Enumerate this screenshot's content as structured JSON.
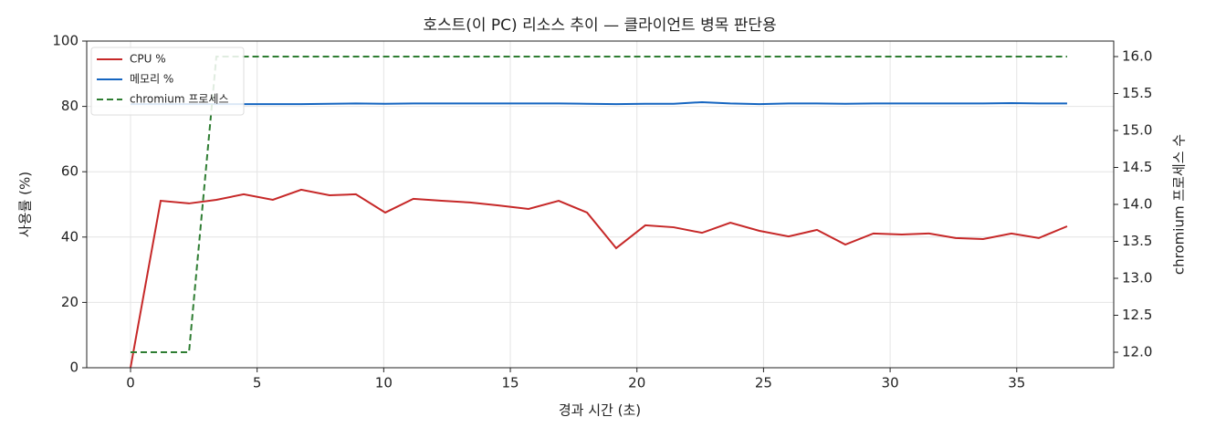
{
  "chart_data": {
    "type": "line",
    "title": "호스트(이 PC) 리소스 추이 — 클라이언트 병목 판단용",
    "x_label": "경과 시간 (초)",
    "y_label": "사용률 (%)",
    "y2_label": "chromium 프로세스 수",
    "x": [
      0,
      1.19,
      2.31,
      3.39,
      4.47,
      5.62,
      6.74,
      7.86,
      8.9,
      10.06,
      11.17,
      12.29,
      13.41,
      14.53,
      15.72,
      16.91,
      18.03,
      19.18,
      20.33,
      21.45,
      22.57,
      23.69,
      24.84,
      25.99,
      27.11,
      28.23,
      29.34,
      30.46,
      31.54,
      32.59,
      33.67,
      34.79,
      35.87,
      36.99
    ],
    "series": [
      {
        "name": "CPU %",
        "color": "#c62828",
        "values": [
          0,
          51.1,
          50.3,
          51.4,
          53.1,
          51.4,
          54.5,
          52.8,
          53.1,
          47.5,
          51.7,
          51.1,
          50.6,
          49.7,
          48.6,
          51.1,
          47.5,
          36.6,
          43.6,
          43.0,
          41.3,
          44.4,
          41.9,
          40.2,
          42.2,
          37.7,
          41.1,
          40.8,
          41.1,
          39.7,
          39.4,
          41.1,
          39.7,
          43.3
        ]
      },
      {
        "name": "메모리 %",
        "color": "#1565c0",
        "values": [
          80.7,
          80.7,
          80.7,
          80.7,
          80.7,
          80.7,
          80.7,
          80.8,
          80.9,
          80.8,
          80.9,
          80.9,
          80.9,
          80.9,
          80.9,
          80.9,
          80.8,
          80.7,
          80.8,
          80.8,
          81.3,
          80.9,
          80.7,
          80.9,
          80.9,
          80.8,
          80.9,
          80.9,
          80.9,
          80.9,
          80.9,
          81.0,
          80.9,
          80.9
        ]
      },
      {
        "name": "chromium 프로세스",
        "color": "#2e7d32",
        "axis": "y2",
        "linestyle": "dashed",
        "values": [
          12,
          12,
          12,
          16,
          16,
          16,
          16,
          16,
          16,
          16,
          16,
          16,
          16,
          16,
          16,
          16,
          16,
          16,
          16,
          16,
          16,
          16,
          16,
          16,
          16,
          16,
          16,
          16,
          16,
          16,
          16,
          16,
          16,
          16
        ]
      }
    ],
    "xlim": [
      -1.73,
      38.83
    ],
    "xticks": [
      0,
      5,
      10,
      15,
      20,
      25,
      30,
      35
    ],
    "ylim": [
      0,
      100
    ],
    "yticks": [
      0,
      20,
      40,
      60,
      80,
      100
    ],
    "y2lim": [
      11.79,
      16.21
    ],
    "y2ticks": [
      {
        "value": 12,
        "label": "12.0"
      },
      {
        "value": 12.5,
        "label": "12.5"
      },
      {
        "value": 13,
        "label": "13.0"
      },
      {
        "value": 13.5,
        "label": "13.5"
      },
      {
        "value": 14,
        "label": "14.0"
      },
      {
        "value": 14.5,
        "label": "14.5"
      },
      {
        "value": 15,
        "label": "15.0"
      },
      {
        "value": 15.5,
        "label": "15.5"
      },
      {
        "value": 16,
        "label": "16.0"
      }
    ],
    "grid": true,
    "legend": "upper-left"
  }
}
